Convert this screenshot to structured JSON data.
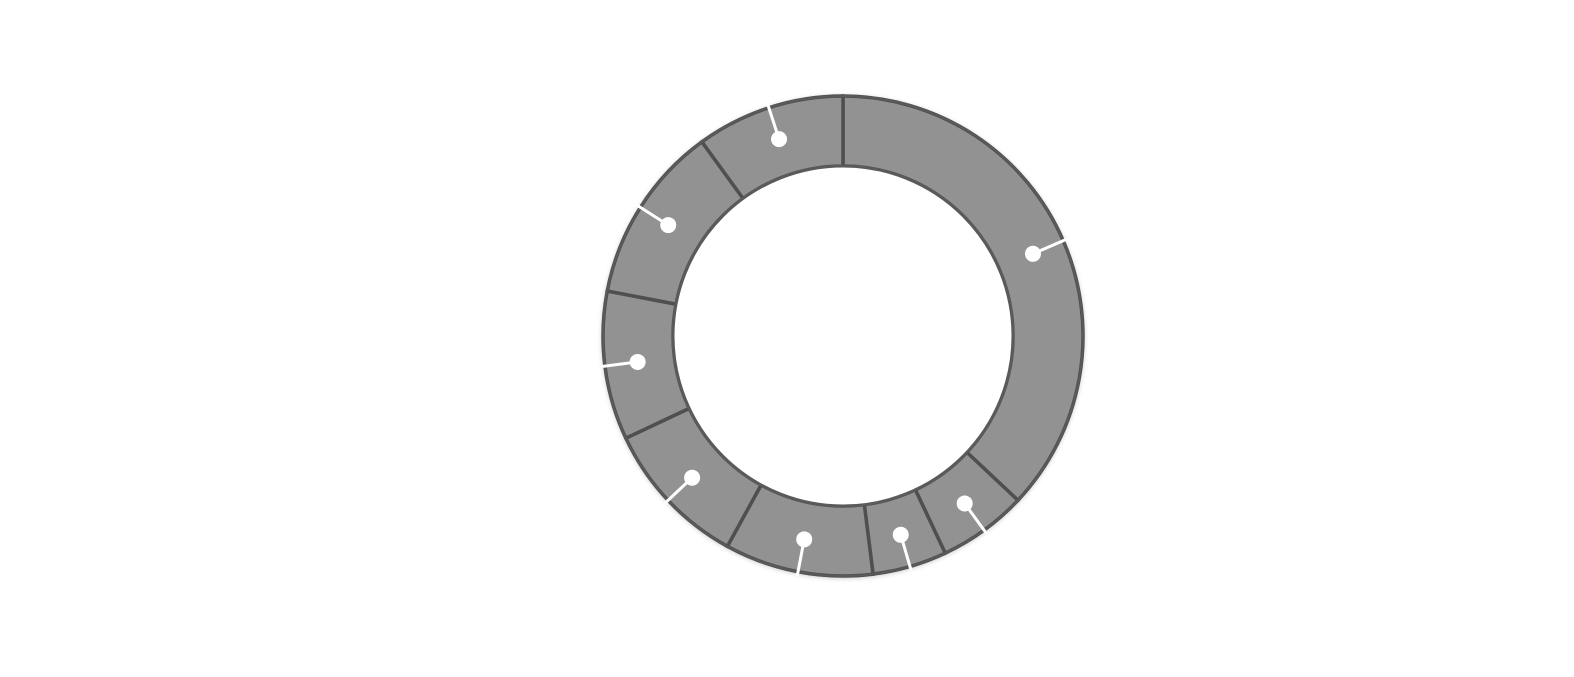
{
  "chart_data": {
    "type": "pie",
    "variant": "donut",
    "title": "",
    "start": "12 o'clock",
    "direction": "clockwise",
    "legend": "none",
    "data_labels": "none",
    "segments": [
      {
        "value": 37.0
      },
      {
        "value": 6.0
      },
      {
        "value": 5.0
      },
      {
        "value": 10.0
      },
      {
        "value": 10.0
      },
      {
        "value": 10.0
      },
      {
        "value": 12.0
      },
      {
        "value": 10.0
      }
    ],
    "colors": {
      "segment_fill": "#929292",
      "segment_outline": "#4f4f4f",
      "ring_edge": "#5a5a5a",
      "marker": "#ffffff",
      "background": "#ffffff"
    }
  }
}
